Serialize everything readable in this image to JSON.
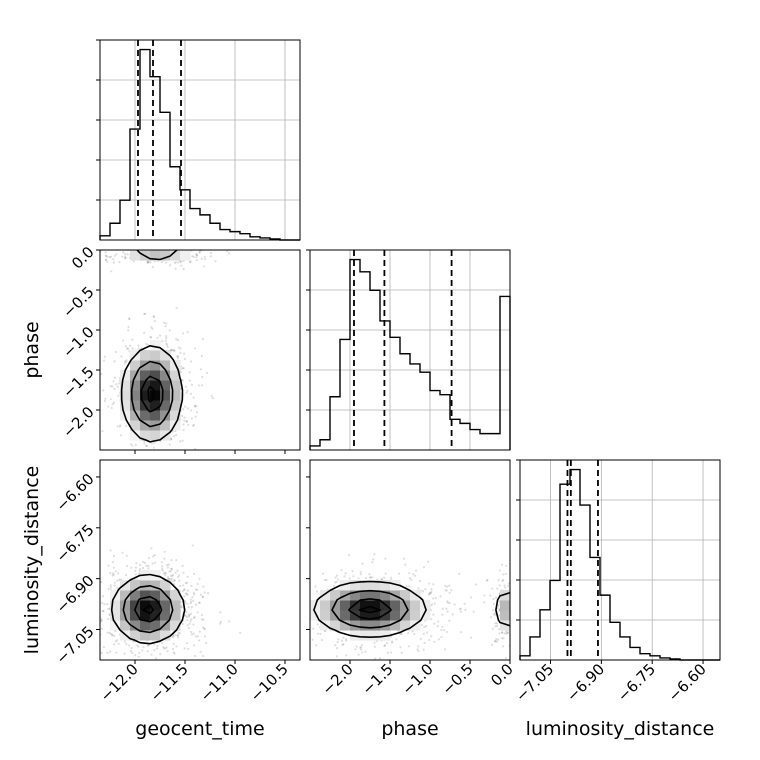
{
  "chart_data": {
    "type": "corner",
    "title": "",
    "parameters": [
      {
        "name": "geocent_time",
        "label": "geocent_time",
        "range": [
          -12.35,
          -10.35
        ],
        "ticks": [
          -12.0,
          -11.5,
          -11.0,
          -10.5
        ],
        "tick_labels": [
          "−12.0",
          "−11.5",
          "−11.0",
          "−10.5"
        ],
        "quantiles": [
          -11.97,
          -11.82,
          -11.54
        ],
        "histogram": {
          "bin_edges": [
            -12.35,
            -12.25,
            -12.15,
            -12.05,
            -11.95,
            -11.85,
            -11.75,
            -11.65,
            -11.55,
            -11.45,
            -11.35,
            -11.25,
            -11.15,
            -11.05,
            -10.95,
            -10.85,
            -10.75,
            -10.65,
            -10.55,
            -10.45,
            -10.35
          ],
          "counts": [
            0.02,
            0.08,
            0.19,
            0.53,
            0.91,
            0.78,
            0.61,
            0.35,
            0.24,
            0.15,
            0.12,
            0.08,
            0.05,
            0.04,
            0.03,
            0.015,
            0.01,
            0.005,
            0.0,
            0.0
          ]
        }
      },
      {
        "name": "phase",
        "label": "phase",
        "range": [
          -2.5,
          0.0
        ],
        "ticks": [
          -2.0,
          -1.5,
          -1.0,
          -0.5,
          0.0
        ],
        "tick_labels": [
          "−2.0",
          "−1.5",
          "−1.0",
          "−0.5",
          "0.0"
        ],
        "quantiles": [
          -1.95,
          -1.57,
          -0.73
        ],
        "histogram": {
          "bin_edges": [
            -2.5,
            -2.375,
            -2.25,
            -2.125,
            -2.0,
            -1.875,
            -1.75,
            -1.625,
            -1.5,
            -1.375,
            -1.25,
            -1.125,
            -1.0,
            -0.875,
            -0.75,
            -0.625,
            -0.5,
            -0.375,
            -0.25,
            -0.125,
            0.0
          ],
          "counts": [
            0.02,
            0.05,
            0.26,
            0.54,
            0.93,
            0.87,
            0.78,
            0.63,
            0.55,
            0.47,
            0.42,
            0.38,
            0.29,
            0.27,
            0.15,
            0.13,
            0.1,
            0.08,
            0.08,
            0.75
          ]
        }
      },
      {
        "name": "luminosity_distance",
        "label": "luminosity_distance",
        "range": [
          -7.14,
          -6.55
        ],
        "ticks": [
          -7.05,
          -6.9,
          -6.75,
          -6.6
        ],
        "tick_labels": [
          "−7.05",
          "−6.90",
          "−6.75",
          "−6.60"
        ],
        "quantiles": [
          -7.0,
          -6.99,
          -6.91
        ],
        "histogram": {
          "bin_edges": [
            -7.14,
            -7.1105,
            -7.081,
            -7.0515,
            -7.022,
            -6.9925,
            -6.963,
            -6.9335,
            -6.904,
            -6.8745,
            -6.845,
            -6.8155,
            -6.786,
            -6.7565,
            -6.727,
            -6.6975,
            -6.668,
            -6.6385,
            -6.609,
            -6.5795,
            -6.55
          ],
          "counts": [
            0.02,
            0.11,
            0.24,
            0.38,
            0.84,
            0.91,
            0.74,
            0.49,
            0.31,
            0.18,
            0.11,
            0.06,
            0.03,
            0.02,
            0.01,
            0.005,
            0.0,
            0.0,
            0.0,
            0.0
          ]
        }
      }
    ],
    "pairs": [
      {
        "x": "geocent_time",
        "y": "phase",
        "density_peaks": [
          {
            "cx": -11.83,
            "cy": -1.8,
            "sx": 0.15,
            "sy": 0.3,
            "w": 1.0
          },
          {
            "cx": -11.78,
            "cy": -0.05,
            "sx": 0.22,
            "sy": 0.06,
            "w": 0.3
          }
        ]
      },
      {
        "x": "geocent_time",
        "y": "luminosity_distance",
        "density_peaks": [
          {
            "cx": -11.87,
            "cy": -6.99,
            "sx": 0.18,
            "sy": 0.05,
            "w": 1.0
          }
        ]
      },
      {
        "x": "phase",
        "y": "luminosity_distance",
        "density_peaks": [
          {
            "cx": -1.75,
            "cy": -6.99,
            "sx": 0.35,
            "sy": 0.04,
            "w": 1.0
          },
          {
            "cx": -0.05,
            "cy": -6.99,
            "sx": 0.08,
            "sy": 0.04,
            "w": 0.35
          }
        ]
      }
    ],
    "grid": true,
    "legend": "none"
  }
}
